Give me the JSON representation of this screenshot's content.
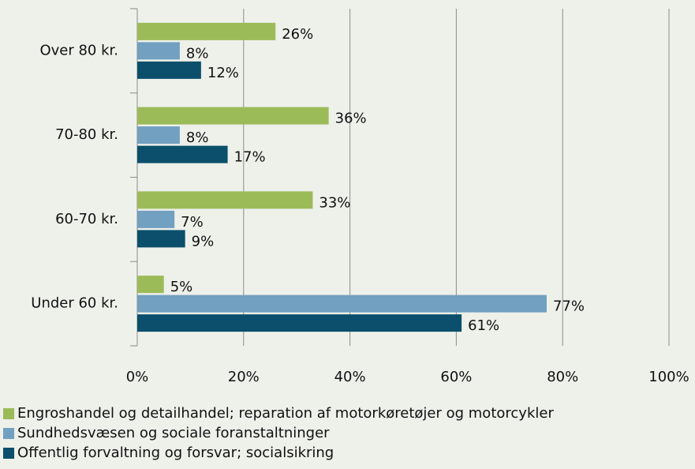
{
  "chart_data": {
    "type": "hbar",
    "categories": [
      "Over 80 kr.",
      "70-80 kr.",
      "60-70 kr.",
      "Under 60 kr."
    ],
    "series": [
      {
        "name": "Engroshandel og detailhandel; reparation af motorkøretøjer og motorcykler",
        "color": "#9bbb59",
        "values": [
          26,
          36,
          33,
          5
        ],
        "value_labels": [
          "26%",
          "36%",
          "33%",
          "5%"
        ]
      },
      {
        "name": "Sundhedsvæsen og sociale foranstaltninger",
        "color": "#71a0c0",
        "values": [
          8,
          8,
          7,
          77
        ],
        "value_labels": [
          "8%",
          "8%",
          "7%",
          "77%"
        ]
      },
      {
        "name": "Offentlig forvaltning og forsvar; socialsikring",
        "color": "#0b4f6c",
        "values": [
          12,
          17,
          9,
          61
        ],
        "value_labels": [
          "12%",
          "17%",
          "9%",
          "61%"
        ]
      }
    ],
    "xlim": [
      0,
      100
    ],
    "xticks": [
      {
        "value": 0,
        "label": "0%"
      },
      {
        "value": 20,
        "label": "20%"
      },
      {
        "value": 40,
        "label": "40%"
      },
      {
        "value": 60,
        "label": "60%"
      },
      {
        "value": 80,
        "label": "80%"
      },
      {
        "value": 100,
        "label": "100%"
      }
    ],
    "grid": true
  }
}
